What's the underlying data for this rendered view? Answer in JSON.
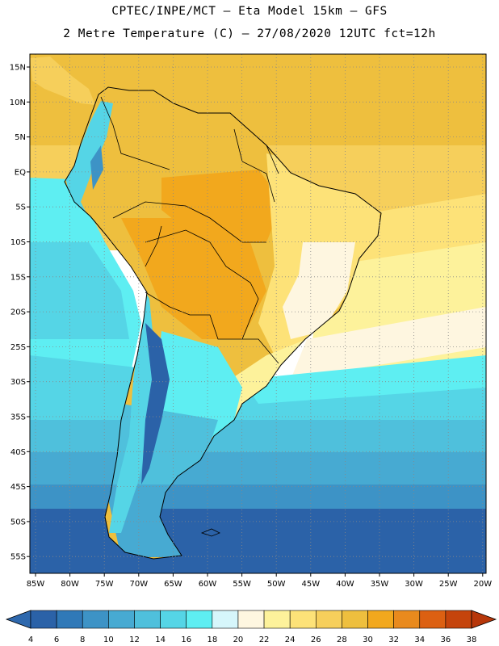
{
  "header": {
    "line1": "CPTEC/INPE/MCT –  Eta Model 15km – GFS",
    "line2": "2 Metre Temperature (C) – 27/08/2020 12UTC fct=12h"
  },
  "map": {
    "lat_labels": [
      "15N",
      "10N",
      "5N",
      "EQ",
      "5S",
      "10S",
      "15S",
      "20S",
      "25S",
      "30S",
      "35S",
      "40S",
      "45S",
      "50S",
      "55S"
    ],
    "lon_labels": [
      "85W",
      "80W",
      "75W",
      "70W",
      "65W",
      "60W",
      "55W",
      "50W",
      "45W",
      "40W",
      "35W",
      "30W",
      "25W",
      "20W"
    ]
  },
  "legend": {
    "values": [
      "4",
      "6",
      "8",
      "10",
      "12",
      "14",
      "16",
      "18",
      "20",
      "22",
      "24",
      "26",
      "28",
      "30",
      "32",
      "34",
      "36",
      "38"
    ],
    "colors": [
      "#2b62a8",
      "#3079b8",
      "#3d93c6",
      "#47aad2",
      "#4fc0dc",
      "#55d5e6",
      "#5eeef2",
      "#d6f6fb",
      "#fef6e0",
      "#fdf29b",
      "#fde278",
      "#f6cf5b",
      "#eebf3e",
      "#f2a81d",
      "#e98a1d",
      "#dc6012",
      "#c5440c",
      "#b7370a"
    ],
    "under_color": "#2e68ad",
    "over_color": "#b7370a"
  }
}
